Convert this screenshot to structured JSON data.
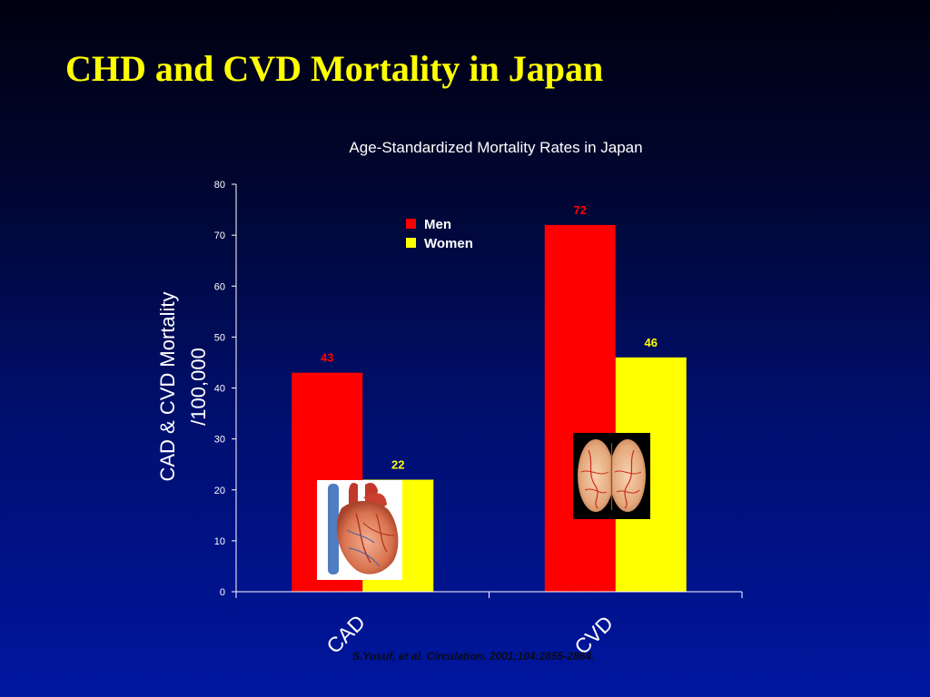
{
  "slide": {
    "title": "CHD and CVD Mortality in Japan",
    "citation": "S.Yusuf, et al.  Circulation. 2001;104:2855-2864."
  },
  "colors": {
    "men": "#ff0000",
    "women": "#ffff00",
    "title": "#ffff00",
    "axis": "#ffffff",
    "men_label": "#ff0000",
    "women_label": "#ffff00"
  },
  "images": {
    "cad": "heart-illustration",
    "cvd": "brain-illustration"
  },
  "chart_data": {
    "type": "bar",
    "title": "Age-Standardized Mortality Rates in Japan",
    "ylabel_line1": "CAD & CVD Mortality",
    "ylabel_line2": "/100,000",
    "xlabel": "",
    "categories": [
      "CAD",
      "CVD"
    ],
    "series": [
      {
        "name": "Men",
        "values": [
          43,
          72
        ]
      },
      {
        "name": "Women",
        "values": [
          22,
          46
        ]
      }
    ],
    "ylim": [
      0,
      80
    ],
    "yticks": [
      0,
      10,
      20,
      30,
      40,
      50,
      60,
      70,
      80
    ],
    "data_labels": true,
    "legend": "top-left",
    "grid": false
  }
}
